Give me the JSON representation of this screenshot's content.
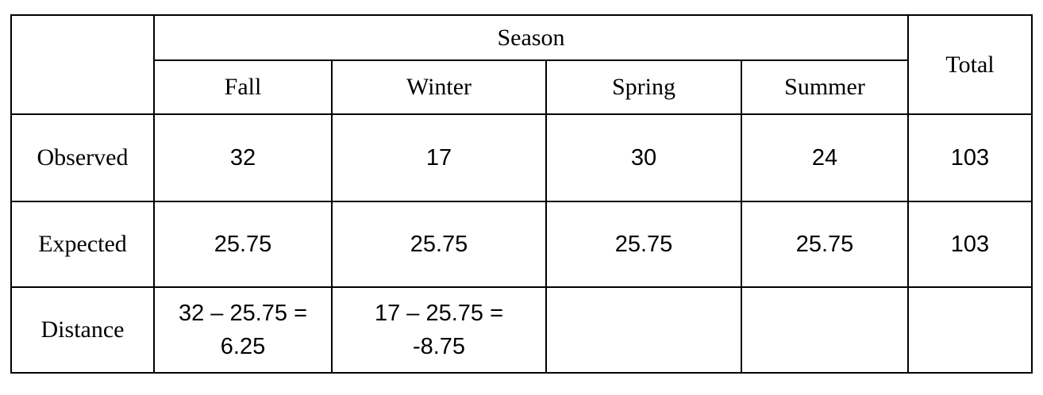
{
  "table": {
    "header": {
      "group_label": "Season",
      "total_label": "Total",
      "seasons": [
        "Fall",
        "Winter",
        "Spring",
        "Summer"
      ]
    },
    "rows": [
      {
        "label": "Observed",
        "cells": [
          "32",
          "17",
          "30",
          "24"
        ],
        "total": "103"
      },
      {
        "label": "Expected",
        "cells": [
          "25.75",
          "25.75",
          "25.75",
          "25.75"
        ],
        "total": "103"
      },
      {
        "label": "Distance",
        "cells": [
          {
            "line1": "32 – 25.75 =",
            "line2": "6.25"
          },
          {
            "line1": "17 – 25.75 =",
            "line2": "-8.75"
          },
          {
            "line1": "",
            "line2": ""
          },
          {
            "line1": "",
            "line2": ""
          }
        ],
        "total": ""
      }
    ]
  }
}
